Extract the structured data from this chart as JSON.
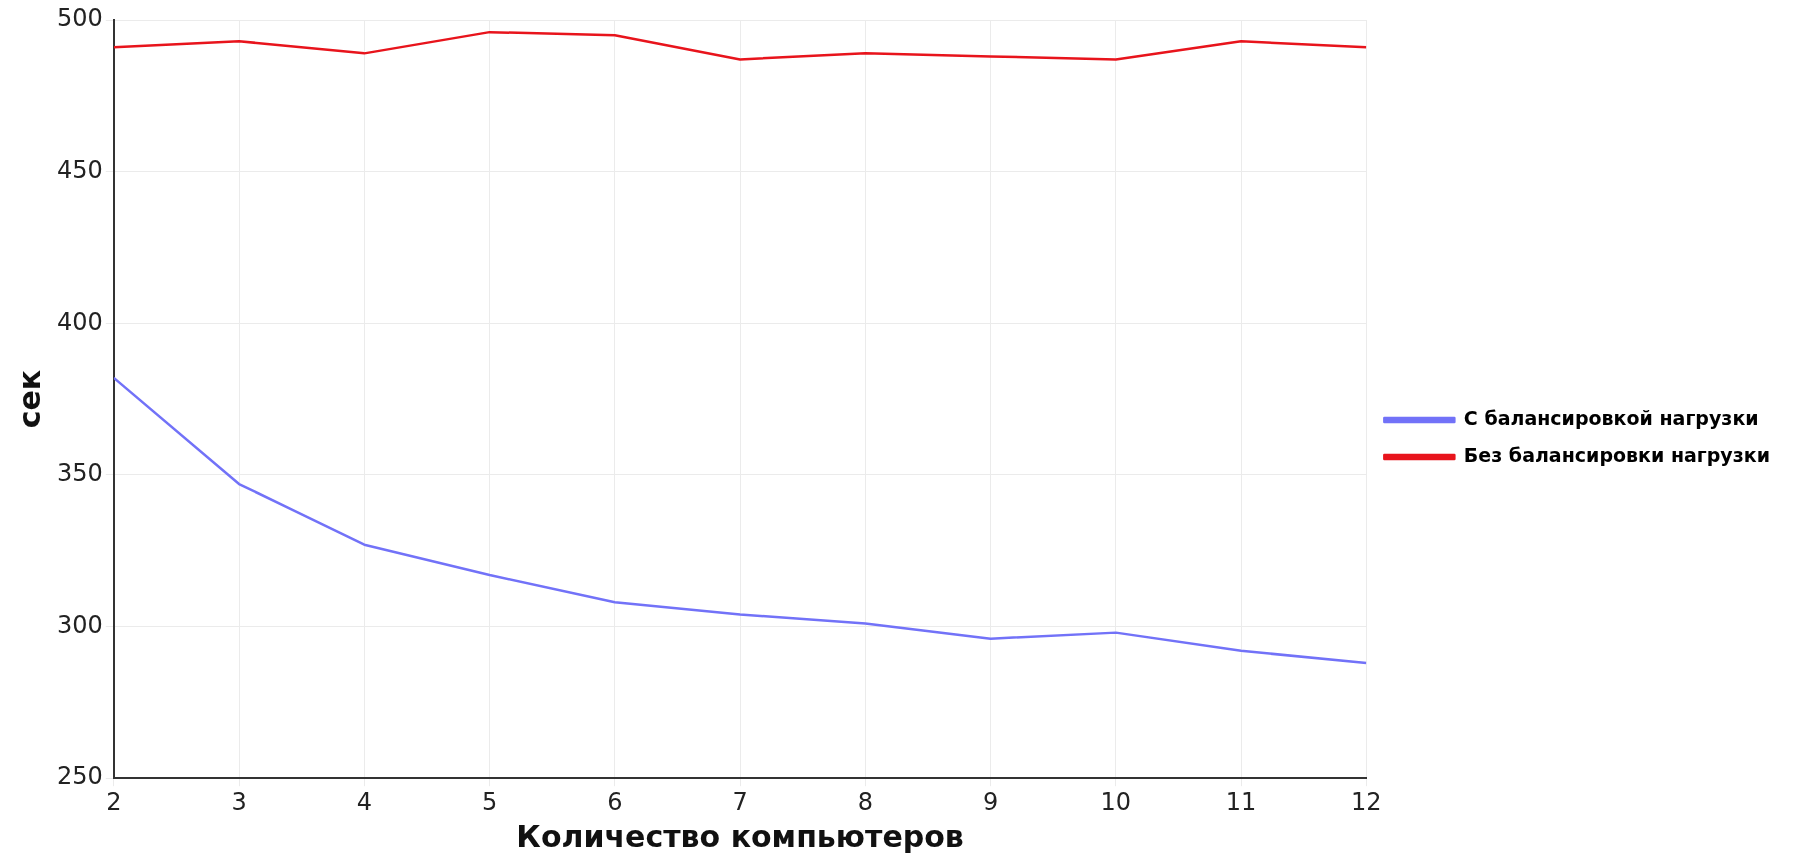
{
  "chart_data": {
    "type": "line",
    "xlabel": "Количество компьютеров",
    "ylabel": "сек",
    "x": [
      2,
      3,
      4,
      5,
      6,
      7,
      8,
      9,
      10,
      11,
      12
    ],
    "series": [
      {
        "name": "С балансировкой нагрузки",
        "color": "#7272f8",
        "values": [
          382,
          347,
          327,
          317,
          308,
          304,
          301,
          296,
          298,
          292,
          288
        ]
      },
      {
        "name": "Без балансировки нагрузки",
        "color": "#e8141c",
        "values": [
          491,
          493,
          489,
          496,
          495,
          487,
          489,
          488,
          487,
          493,
          491
        ]
      }
    ],
    "xlim": [
      2,
      12
    ],
    "xticks": [
      2,
      3,
      4,
      5,
      6,
      7,
      8,
      9,
      10,
      11,
      12
    ],
    "ylim": [
      250,
      500
    ],
    "yticks": [
      250,
      300,
      350,
      400,
      450,
      500
    ],
    "grid": true,
    "legend": "right",
    "marker": "none",
    "line_style": "solid"
  }
}
